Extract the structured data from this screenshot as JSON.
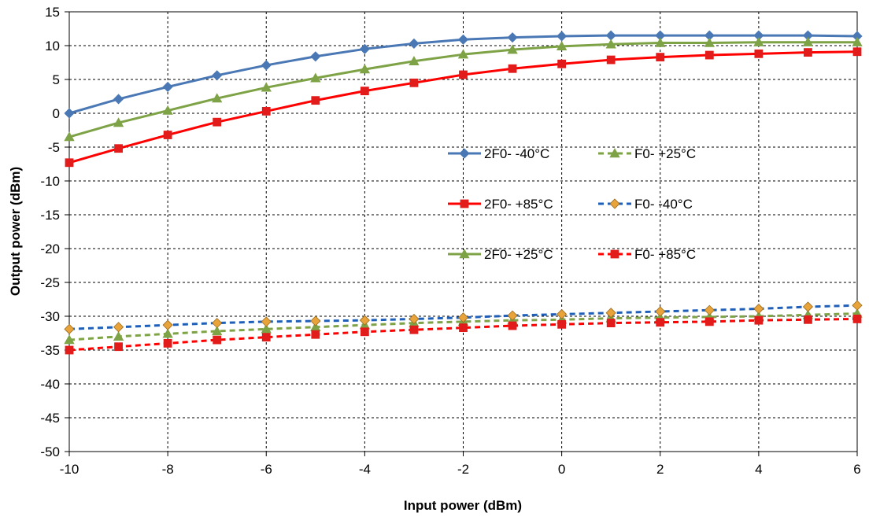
{
  "chart_data": {
    "type": "line",
    "xlabel": "Input power (dBm)",
    "ylabel": "Output power (dBm)",
    "xlim": [
      -10,
      6
    ],
    "ylim": [
      -50,
      15
    ],
    "x_ticks": [
      "-10",
      "-8",
      "-6",
      "-4",
      "-2",
      "0",
      "2",
      "4",
      "6"
    ],
    "y_ticks": [
      "15",
      "10",
      "5",
      "0",
      "-5",
      "-10",
      "-15",
      "-20",
      "-25",
      "-30",
      "-35",
      "-40",
      "-45",
      "-50"
    ],
    "grid": true,
    "legend_position": "center-right",
    "x": [
      -10,
      -9,
      -8,
      -7,
      -6,
      -5,
      -4,
      -3,
      -2,
      -1,
      0,
      1,
      2,
      3,
      4,
      5,
      6
    ],
    "series": [
      {
        "name": "2F0- -40°C",
        "color": "#4a78b5",
        "dash": "solid",
        "marker": "diamond",
        "marker_fill": "#4a78b5",
        "values": [
          0.0,
          2.1,
          3.9,
          5.6,
          7.1,
          8.4,
          9.5,
          10.3,
          10.9,
          11.2,
          11.4,
          11.5,
          11.5,
          11.5,
          11.5,
          11.5,
          11.4
        ]
      },
      {
        "name": "2F0- +85°C",
        "color": "#ff0000",
        "dash": "solid",
        "marker": "square",
        "marker_fill": "#e21b1b",
        "values": [
          -7.3,
          -5.2,
          -3.2,
          -1.3,
          0.3,
          1.9,
          3.3,
          4.5,
          5.7,
          6.6,
          7.3,
          7.9,
          8.3,
          8.6,
          8.8,
          9.0,
          9.1
        ]
      },
      {
        "name": "2F0- +25°C",
        "color": "#7ea346",
        "dash": "solid",
        "marker": "triangle",
        "marker_fill": "#7ea346",
        "values": [
          -3.5,
          -1.4,
          0.4,
          2.2,
          3.8,
          5.2,
          6.5,
          7.7,
          8.7,
          9.4,
          9.9,
          10.2,
          10.4,
          10.4,
          10.5,
          10.5,
          10.5
        ]
      },
      {
        "name": "F0- +25°C",
        "color": "#7ea346",
        "dash": "dashed",
        "marker": "triangle",
        "marker_fill": "#7ea346",
        "values": [
          -33.5,
          -33.0,
          -32.6,
          -32.2,
          -31.9,
          -31.6,
          -31.3,
          -31.0,
          -30.8,
          -30.6,
          -30.5,
          -30.3,
          -30.2,
          -30.1,
          -30.0,
          -29.8,
          -29.6
        ]
      },
      {
        "name": "F0- -40°C",
        "color": "#1f5fb8",
        "dash": "dashed",
        "marker": "diamond",
        "marker_fill": "#e8a33a",
        "values": [
          -31.9,
          -31.6,
          -31.3,
          -31.0,
          -30.8,
          -30.7,
          -30.6,
          -30.4,
          -30.2,
          -29.9,
          -29.7,
          -29.5,
          -29.3,
          -29.1,
          -28.9,
          -28.6,
          -28.4
        ]
      },
      {
        "name": "F0- +85°C",
        "color": "#ff0000",
        "dash": "dashed",
        "marker": "square",
        "marker_fill": "#e21b1b",
        "values": [
          -35.0,
          -34.5,
          -34.0,
          -33.5,
          -33.1,
          -32.7,
          -32.3,
          -32.0,
          -31.7,
          -31.4,
          -31.2,
          -31.0,
          -30.9,
          -30.8,
          -30.6,
          -30.5,
          -30.4
        ]
      }
    ]
  }
}
